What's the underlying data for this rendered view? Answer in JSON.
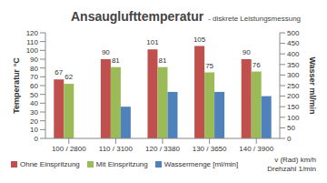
{
  "chart_data": {
    "type": "bar",
    "title": "Ansauglufttemperatur",
    "subtitle": "- diskrete Leistungsmessung",
    "categories": [
      "100 / 2800",
      "110 / 3100",
      "120 / 3380",
      "130 / 3650",
      "140 / 3900"
    ],
    "x_label": [
      "v (Rad) km/h",
      "Drehzahl 1/min"
    ],
    "y_label": "Temperatur °C",
    "y2_label": "Wasser ml/min",
    "ylim": [
      0,
      120
    ],
    "yticks": [
      0,
      10,
      20,
      30,
      40,
      50,
      60,
      70,
      80,
      90,
      100,
      110,
      120
    ],
    "y2lim": [
      0,
      500
    ],
    "y2ticks": [
      0,
      50,
      100,
      150,
      200,
      250,
      300,
      350,
      400,
      450,
      500
    ],
    "grid": false,
    "legend": "bottom",
    "series": [
      {
        "name": "Ohne Einspritzung",
        "color": "#c0504d",
        "values": [
          67,
          90,
          101,
          105,
          90
        ],
        "data_labels": true
      },
      {
        "name": "Mit Einspritzung",
        "color": "#9bbb59",
        "values": [
          62,
          81,
          81,
          75,
          76
        ],
        "data_labels": true
      },
      {
        "name": "Wassermenge [ml/min]",
        "color": "#4f81bd",
        "values": [
          null,
          150,
          220,
          220,
          200
        ],
        "axis": "y2"
      }
    ]
  }
}
